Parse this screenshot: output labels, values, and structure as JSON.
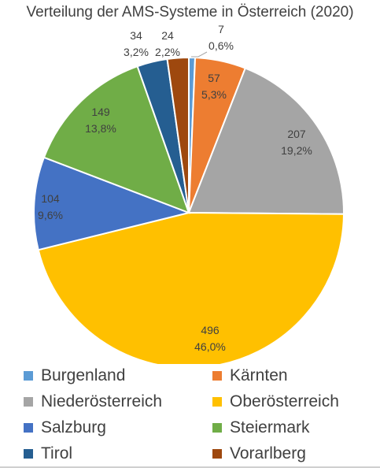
{
  "chart_data": {
    "type": "pie",
    "title": "Verteilung der AMS-Systeme in Österreich (2020)",
    "slices": [
      {
        "name": "Burgenland",
        "value": 7,
        "percent": "0,6%",
        "color": "#5B9BD5"
      },
      {
        "name": "Kärnten",
        "value": 57,
        "percent": "5,3%",
        "color": "#ED7D31"
      },
      {
        "name": "Niederösterreich",
        "value": 207,
        "percent": "19,2%",
        "color": "#A5A5A5"
      },
      {
        "name": "Oberösterreich",
        "value": 496,
        "percent": "46,0%",
        "color": "#FFC000"
      },
      {
        "name": "Salzburg",
        "value": 104,
        "percent": "9,6%",
        "color": "#4472C4"
      },
      {
        "name": "Steiermark",
        "value": 149,
        "percent": "13,8%",
        "color": "#70AD47"
      },
      {
        "name": "Tirol",
        "value": 34,
        "percent": "3,2%",
        "color": "#255E91"
      },
      {
        "name": "Vorarlberg",
        "value": 24,
        "percent": "2,2%",
        "color": "#9E480E"
      }
    ],
    "legend_position": "bottom"
  }
}
